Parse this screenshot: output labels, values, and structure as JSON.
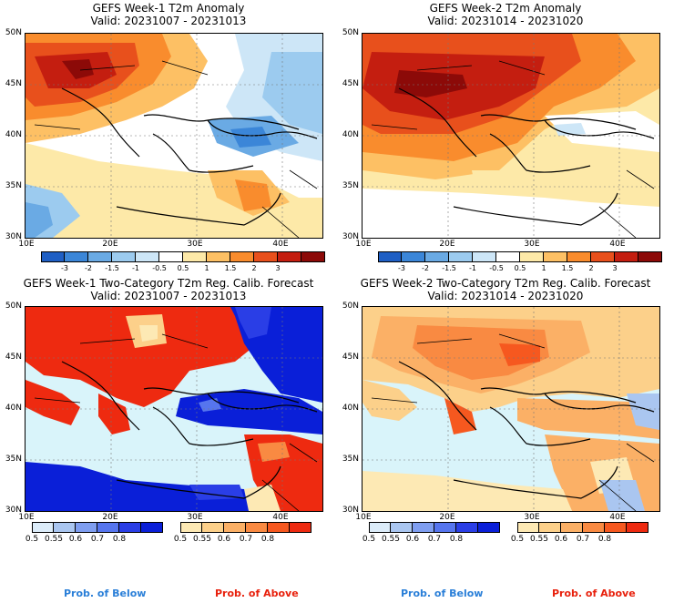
{
  "panels": [
    {
      "title_line1": "GEFS Week-1 T2m Anomaly",
      "title_line2": "Valid: 20231007 - 20231013"
    },
    {
      "title_line1": "GEFS Week-2 T2m Anomaly",
      "title_line2": "Valid: 20231014 - 20231020"
    },
    {
      "title_line1": "GEFS Week-1 Two-Category T2m Reg. Calib. Forecast",
      "title_line2": "Valid: 20231007 - 20231013"
    },
    {
      "title_line1": "GEFS Week-2 Two-Category T2m Reg. Calib. Forecast",
      "title_line2": "Valid: 20231014 - 20231020"
    }
  ],
  "axes": {
    "lat_labels": [
      "50N",
      "45N",
      "40N",
      "35N",
      "30N"
    ],
    "lon_labels": [
      "10E",
      "20E",
      "30E",
      "40E"
    ]
  },
  "anomaly_colorbar": {
    "labels": [
      "-3",
      "-2",
      "-1.5",
      "-1",
      "-0.5",
      "0.5",
      "1",
      "1.5",
      "2",
      "3"
    ],
    "colors": [
      "#1f5fc4",
      "#3b86d8",
      "#6aaae4",
      "#9ccbef",
      "#cde6f7",
      "#ffffff",
      "#fde9a8",
      "#fdc064",
      "#f98c2d",
      "#e8501c",
      "#c41e10",
      "#8c0a08"
    ]
  },
  "prob_colorbar_below": {
    "labels": [
      "0.5",
      "0.55",
      "0.6",
      "0.7",
      "0.8"
    ],
    "colors": [
      "#dcecf9",
      "#aac6f0",
      "#7f9ef0",
      "#5675ee",
      "#2a3ee6",
      "#0a1fd8"
    ]
  },
  "prob_colorbar_above": {
    "labels": [
      "0.5",
      "0.55",
      "0.6",
      "0.7",
      "0.8"
    ],
    "colors": [
      "#fde9b4",
      "#fcd08a",
      "#fbb066",
      "#f98a42",
      "#f6581f",
      "#ee2a10"
    ]
  },
  "legend": {
    "below_text": "Prob. of Below",
    "above_text": "Prob. of Above",
    "below_color": "#2a7fd8",
    "above_color": "#e8200c"
  },
  "colors": {
    "sea_light": "#d9f4fa",
    "below_deep": "#0a1fd8",
    "above_deep": "#ee2a10"
  }
}
